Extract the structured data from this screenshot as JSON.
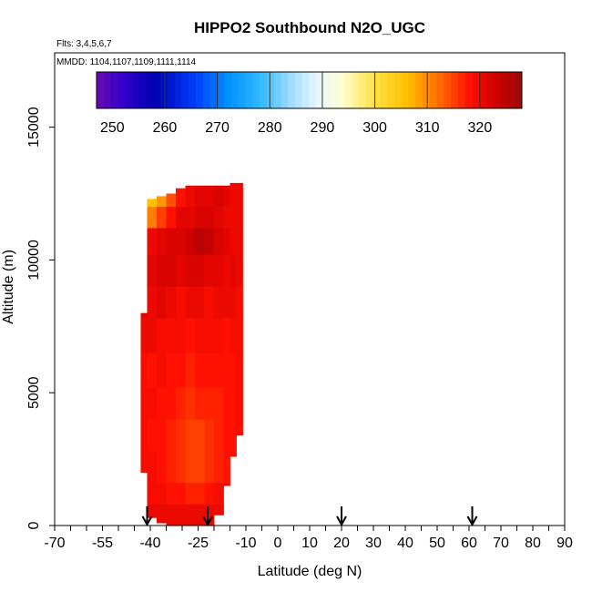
{
  "chart_data": {
    "type": "heatmap",
    "title": "HIPPO2 Southbound N2O_UGC",
    "annotations": [
      "Flts: 3,4,5,6,7",
      "MMDD: 1104,1107,1109,1111,1114"
    ],
    "xlabel": "Latitude (deg N)",
    "ylabel": "Altitude (m)",
    "xlim": [
      -70,
      90
    ],
    "ylim": [
      0,
      17800
    ],
    "x_ticks_labeled": [
      "-70",
      "-55",
      "-40",
      "-25",
      "-10",
      "0",
      "10",
      "20",
      "30",
      "40",
      "50",
      "60",
      "70",
      "80",
      "90"
    ],
    "y_ticks_labeled": [
      "0",
      "5000",
      "10000",
      "15000"
    ],
    "grid": false,
    "colorbar": {
      "placement": "top inset",
      "range": [
        247,
        328
      ],
      "tick_labels": [
        "250",
        "260",
        "270",
        "280",
        "290",
        "300",
        "310",
        "320"
      ],
      "stops": [
        {
          "v": 247,
          "color": "#6a0dad"
        },
        {
          "v": 252,
          "color": "#3300cc"
        },
        {
          "v": 258,
          "color": "#0000b0"
        },
        {
          "v": 266,
          "color": "#0040ff"
        },
        {
          "v": 272,
          "color": "#0090ff"
        },
        {
          "v": 278,
          "color": "#30b8ff"
        },
        {
          "v": 284,
          "color": "#9fdcff"
        },
        {
          "v": 289,
          "color": "#e8f6ff"
        },
        {
          "v": 294,
          "color": "#ffffd0"
        },
        {
          "v": 300,
          "color": "#ffe040"
        },
        {
          "v": 306,
          "color": "#ffc000"
        },
        {
          "v": 312,
          "color": "#ff7000"
        },
        {
          "v": 318,
          "color": "#ff1000"
        },
        {
          "v": 323,
          "color": "#d00000"
        },
        {
          "v": 328,
          "color": "#9a0a0a"
        }
      ]
    },
    "flight_markers": {
      "symbol": "down-arrow",
      "latitudes": [
        -41,
        -22,
        20,
        61
      ]
    },
    "curtain_columns": [
      {
        "x0": -43,
        "x1": -41,
        "bottom": 2000,
        "top": 8000
      },
      {
        "x0": -41,
        "x1": -38,
        "bottom": 300,
        "top": 12300
      },
      {
        "x0": -38,
        "x1": -35,
        "bottom": 100,
        "top": 12400
      },
      {
        "x0": -35,
        "x1": -32,
        "bottom": 0,
        "top": 12500
      },
      {
        "x0": -32,
        "x1": -29,
        "bottom": 0,
        "top": 12700
      },
      {
        "x0": -29,
        "x1": -26,
        "bottom": 0,
        "top": 12800
      },
      {
        "x0": -26,
        "x1": -23,
        "bottom": 0,
        "top": 12800
      },
      {
        "x0": -23,
        "x1": -20,
        "bottom": 0,
        "top": 12800
      },
      {
        "x0": -20,
        "x1": -17,
        "bottom": 400,
        "top": 12800
      },
      {
        "x0": -17,
        "x1": -15,
        "bottom": 1500,
        "top": 12800
      },
      {
        "x0": -15,
        "x1": -13,
        "bottom": 2600,
        "top": 12900
      },
      {
        "x0": -13,
        "x1": -11,
        "bottom": 3400,
        "top": 13400
      }
    ],
    "value_rows": [
      {
        "y0": 12000,
        "y1": 12900,
        "values": [
          null,
          306,
          309,
          314,
          318,
          320,
          321,
          321,
          322,
          321,
          320,
          320
        ]
      },
      {
        "y0": 11200,
        "y1": 12000,
        "values": [
          null,
          311,
          315,
          318,
          321,
          321,
          322,
          322,
          321,
          320,
          320,
          320
        ]
      },
      {
        "y0": 10200,
        "y1": 11200,
        "values": [
          null,
          320,
          321,
          322,
          322,
          323,
          325,
          324,
          322,
          321,
          320,
          320
        ]
      },
      {
        "y0": 9000,
        "y1": 10200,
        "values": [
          null,
          321,
          322,
          322,
          321,
          322,
          322,
          321,
          321,
          320,
          321,
          320
        ]
      },
      {
        "y0": 7800,
        "y1": 9000,
        "values": [
          321,
          320,
          321,
          320,
          319,
          320,
          320,
          319,
          320,
          320,
          320,
          319
        ]
      },
      {
        "y0": 6500,
        "y1": 7800,
        "values": [
          320,
          320,
          319,
          319,
          319,
          318,
          319,
          319,
          319,
          318,
          319,
          319
        ]
      },
      {
        "y0": 5200,
        "y1": 6500,
        "values": [
          319,
          318,
          319,
          318,
          318,
          317,
          318,
          318,
          318,
          318,
          318,
          319
        ]
      },
      {
        "y0": 4000,
        "y1": 5200,
        "values": [
          319,
          319,
          318,
          318,
          317,
          316,
          317,
          317,
          317,
          318,
          318,
          319
        ]
      },
      {
        "y0": 2800,
        "y1": 4000,
        "values": [
          319,
          318,
          318,
          317,
          316,
          315,
          315,
          316,
          317,
          318,
          318,
          319
        ]
      },
      {
        "y0": 1600,
        "y1": 2800,
        "values": [
          319,
          319,
          318,
          317,
          316,
          315,
          315,
          316,
          317,
          318,
          318,
          319
        ]
      },
      {
        "y0": 800,
        "y1": 1600,
        "values": [
          319,
          319,
          319,
          318,
          318,
          317,
          317,
          318,
          319,
          319,
          319,
          319
        ]
      },
      {
        "y0": 0,
        "y1": 800,
        "values": [
          319,
          320,
          320,
          320,
          320,
          320,
          320,
          320,
          320,
          320,
          320,
          320
        ]
      }
    ]
  }
}
